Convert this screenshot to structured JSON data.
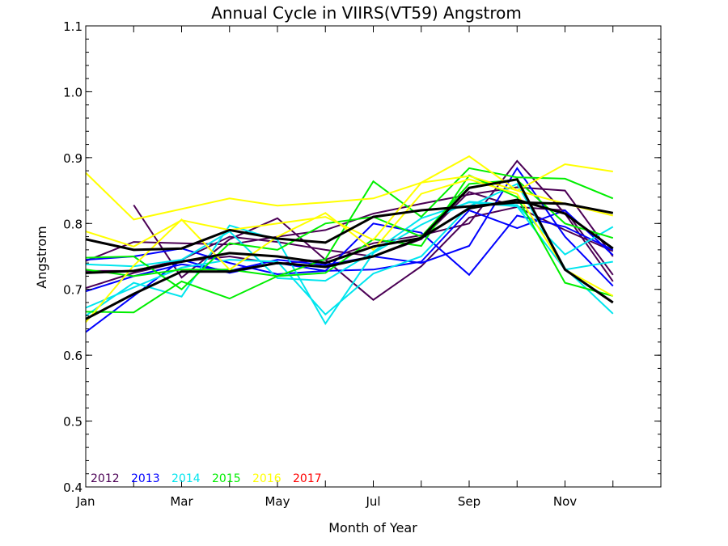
{
  "chart_data": {
    "type": "line",
    "title": "Annual Cycle in VIIRS(VT59) Angstrom",
    "xlabel": "Month of Year",
    "ylabel": "Angstrom",
    "xlim": [
      1,
      13
    ],
    "ylim": [
      0.4,
      1.1
    ],
    "x_ticks": [
      {
        "value": 1,
        "label": "Jan"
      },
      {
        "value": 3,
        "label": "Mar"
      },
      {
        "value": 5,
        "label": "May"
      },
      {
        "value": 7,
        "label": "Jul"
      },
      {
        "value": 9,
        "label": "Sep"
      },
      {
        "value": 11,
        "label": "Nov"
      }
    ],
    "y_ticks": [
      0.4,
      0.5,
      0.6,
      0.7,
      0.8,
      0.9,
      1.0,
      1.1
    ],
    "y_tick_labels": [
      "0.4",
      "0.5",
      "0.6",
      "0.7",
      "0.8",
      "0.9",
      "1.0",
      "1.1"
    ],
    "grid": false,
    "legend_position": "bottom-left",
    "legend": [
      {
        "label": "2012",
        "color": "#4b0055"
      },
      {
        "label": "2013",
        "color": "#0000ff"
      },
      {
        "label": "2014",
        "color": "#00e5ee"
      },
      {
        "label": "2015",
        "color": "#00ee00"
      },
      {
        "label": "2016",
        "color": "#ffff00"
      },
      {
        "label": "2017",
        "color": "#ff0000"
      }
    ],
    "series": [
      {
        "color": "#4b0055",
        "x": [
          1,
          2,
          3,
          4,
          5,
          6,
          7,
          8,
          9,
          10,
          11,
          12
        ],
        "y": [
          0.743,
          0.772,
          0.77,
          0.768,
          0.78,
          0.79,
          0.815,
          0.83,
          0.844,
          0.855,
          0.85,
          0.75
        ]
      },
      {
        "color": "#4b0055",
        "x": [
          2,
          3,
          4,
          5,
          6,
          7,
          8,
          9,
          10,
          11,
          12
        ],
        "y": [
          0.828,
          0.718,
          0.776,
          0.808,
          0.745,
          0.684,
          0.735,
          0.809,
          0.825,
          0.82,
          0.722
        ]
      },
      {
        "color": "#4b0055",
        "x": [
          1,
          2,
          3,
          4,
          5,
          6,
          7,
          8,
          9,
          10,
          11,
          12
        ],
        "y": [
          0.702,
          0.725,
          0.742,
          0.75,
          0.739,
          0.745,
          0.77,
          0.782,
          0.8,
          0.895,
          0.815,
          0.712
        ]
      },
      {
        "color": "#4b0055",
        "x": [
          1,
          2,
          3,
          4,
          5,
          6,
          7,
          8,
          9,
          10,
          11,
          12
        ],
        "y": [
          0.728,
          0.728,
          0.745,
          0.78,
          0.772,
          0.76,
          0.75,
          0.776,
          0.848,
          0.825,
          0.79,
          0.758
        ]
      },
      {
        "color": "#0000ff",
        "x": [
          1,
          2,
          3,
          4,
          5,
          6,
          7,
          8,
          9,
          10,
          11,
          12
        ],
        "y": [
          0.635,
          0.69,
          0.745,
          0.725,
          0.74,
          0.728,
          0.8,
          0.786,
          0.722,
          0.812,
          0.795,
          0.76
        ]
      },
      {
        "color": "#0000ff",
        "x": [
          1,
          2,
          3,
          4,
          5,
          6,
          7,
          8,
          9,
          10,
          11,
          12
        ],
        "y": [
          0.697,
          0.72,
          0.738,
          0.728,
          0.745,
          0.737,
          0.75,
          0.74,
          0.766,
          0.884,
          0.78,
          0.705
        ]
      },
      {
        "color": "#0000ff",
        "x": [
          1,
          2,
          3,
          4,
          5,
          6,
          7,
          8,
          9,
          10,
          11,
          12
        ],
        "y": [
          0.745,
          0.75,
          0.762,
          0.74,
          0.723,
          0.728,
          0.73,
          0.742,
          0.82,
          0.793,
          0.82,
          0.752
        ]
      },
      {
        "color": "#00e5ee",
        "x": [
          1,
          2,
          3,
          4,
          5,
          6,
          7,
          8,
          9,
          10,
          11,
          12
        ],
        "y": [
          0.66,
          0.71,
          0.689,
          0.797,
          0.775,
          0.648,
          0.755,
          0.798,
          0.833,
          0.828,
          0.753,
          0.795
        ]
      },
      {
        "color": "#00e5ee",
        "x": [
          1,
          2,
          3,
          4,
          5,
          6,
          7,
          8,
          9,
          10,
          11,
          12
        ],
        "y": [
          0.738,
          0.735,
          0.745,
          0.788,
          0.717,
          0.713,
          0.757,
          0.808,
          0.832,
          0.826,
          0.73,
          0.742
        ]
      },
      {
        "color": "#00e5ee",
        "x": [
          1,
          2,
          3,
          4,
          5,
          6,
          7,
          8,
          9,
          10,
          11,
          12
        ],
        "y": [
          0.672,
          0.703,
          0.733,
          0.745,
          0.742,
          0.662,
          0.724,
          0.75,
          0.826,
          0.86,
          0.732,
          0.663
        ]
      },
      {
        "color": "#00ee00",
        "x": [
          1,
          2,
          3,
          4,
          5,
          6,
          7,
          8,
          9,
          10,
          11,
          12
        ],
        "y": [
          0.666,
          0.665,
          0.712,
          0.686,
          0.72,
          0.746,
          0.864,
          0.81,
          0.884,
          0.87,
          0.868,
          0.838
        ]
      },
      {
        "color": "#00ee00",
        "x": [
          1,
          2,
          3,
          4,
          5,
          6,
          7,
          8,
          9,
          10,
          11,
          12
        ],
        "y": [
          0.748,
          0.75,
          0.7,
          0.77,
          0.76,
          0.8,
          0.81,
          0.78,
          0.86,
          0.866,
          0.8,
          0.778
        ]
      },
      {
        "color": "#00ee00",
        "x": [
          1,
          2,
          3,
          4,
          5,
          6,
          7,
          8,
          9,
          10,
          11,
          12
        ],
        "y": [
          0.73,
          0.72,
          0.73,
          0.73,
          0.72,
          0.725,
          0.776,
          0.766,
          0.873,
          0.84,
          0.71,
          0.69
        ]
      },
      {
        "color": "#ffff00",
        "x": [
          1,
          2,
          3,
          4,
          5,
          6,
          7,
          8,
          9,
          10,
          11,
          12
        ],
        "y": [
          0.877,
          0.806,
          0.822,
          0.838,
          0.827,
          0.832,
          0.838,
          0.862,
          0.902,
          0.85,
          0.89,
          0.879
        ]
      },
      {
        "color": "#ffff00",
        "x": [
          1,
          2,
          3,
          4,
          5,
          6,
          7,
          8,
          9,
          10,
          11,
          12
        ],
        "y": [
          0.788,
          0.765,
          0.805,
          0.79,
          0.8,
          0.81,
          0.775,
          0.862,
          0.872,
          0.85,
          0.83,
          0.812
        ]
      },
      {
        "color": "#ffff00",
        "x": [
          1,
          2,
          3,
          4,
          5,
          6,
          7,
          8,
          9,
          10,
          11,
          12
        ],
        "y": [
          0.65,
          0.736,
          0.806,
          0.73,
          0.78,
          0.816,
          0.76,
          0.845,
          0.867,
          0.845,
          0.73,
          0.69
        ]
      },
      {
        "color": "#000000",
        "width": 3,
        "x": [
          1,
          2,
          3,
          4,
          5,
          6,
          7,
          8,
          9,
          10,
          11,
          12
        ],
        "y": [
          0.776,
          0.76,
          0.762,
          0.79,
          0.777,
          0.771,
          0.81,
          0.82,
          0.826,
          0.832,
          0.83,
          0.816
        ]
      },
      {
        "color": "#000000",
        "width": 3,
        "x": [
          1,
          2,
          3,
          4,
          5,
          6,
          7,
          8,
          9,
          10,
          11,
          12
        ],
        "y": [
          0.725,
          0.728,
          0.742,
          0.755,
          0.75,
          0.74,
          0.765,
          0.778,
          0.823,
          0.836,
          0.815,
          0.762
        ]
      },
      {
        "color": "#000000",
        "width": 3,
        "x": [
          1,
          2,
          3,
          4,
          5,
          6,
          7,
          8,
          9,
          10,
          11,
          12
        ],
        "y": [
          0.655,
          0.693,
          0.727,
          0.727,
          0.74,
          0.734,
          0.75,
          0.778,
          0.854,
          0.867,
          0.73,
          0.68
        ]
      }
    ]
  }
}
